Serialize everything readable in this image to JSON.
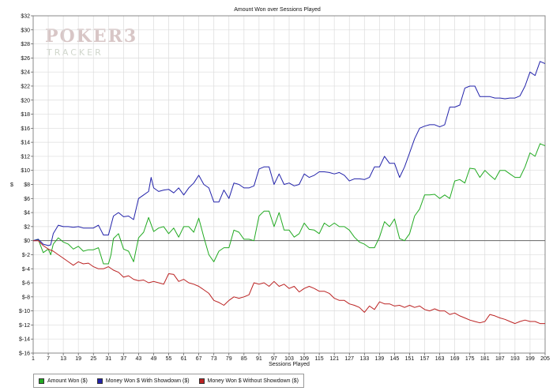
{
  "chart_data": {
    "type": "line",
    "title": "Amount Won over Sessions Played",
    "xlabel": "Sessions Played",
    "ylabel": "$",
    "xlim": [
      1,
      205
    ],
    "ylim": [
      -16,
      32
    ],
    "x_ticks": [
      1,
      7,
      13,
      19,
      25,
      31,
      37,
      43,
      49,
      55,
      61,
      67,
      73,
      79,
      85,
      91,
      97,
      103,
      109,
      115,
      121,
      127,
      133,
      139,
      145,
      151,
      157,
      163,
      169,
      175,
      181,
      187,
      193,
      199,
      205
    ],
    "y_ticks": [
      "$32",
      "$30",
      "$28",
      "$26",
      "$24",
      "$22",
      "$20",
      "$18",
      "$16",
      "$14",
      "$12",
      "$10",
      "$8",
      "$6",
      "$4",
      "$2",
      "$0",
      "$-2",
      "$-4",
      "$-6",
      "$-8",
      "$-10",
      "$-12",
      "$-14",
      "$-16"
    ],
    "y_tick_values": [
      32,
      30,
      28,
      26,
      24,
      22,
      20,
      18,
      16,
      14,
      12,
      10,
      8,
      6,
      4,
      2,
      0,
      -2,
      -4,
      -6,
      -8,
      -10,
      -12,
      -14,
      -16
    ],
    "grid": true,
    "legend_position": "bottom-left",
    "series": [
      {
        "name": "Amount Won ($)",
        "color": "#22aa22",
        "points": [
          [
            1,
            0
          ],
          [
            3,
            0.2
          ],
          [
            5,
            -1.7
          ],
          [
            7,
            -1.2
          ],
          [
            8,
            -2
          ],
          [
            9,
            -0.5
          ],
          [
            11,
            0.4
          ],
          [
            13,
            -0.2
          ],
          [
            15,
            -0.5
          ],
          [
            17,
            -1.2
          ],
          [
            19,
            -0.8
          ],
          [
            21,
            -1.5
          ],
          [
            23,
            -1.3
          ],
          [
            25,
            -1.3
          ],
          [
            27,
            -1
          ],
          [
            29,
            -3.3
          ],
          [
            31,
            -3.3
          ],
          [
            32,
            -2
          ],
          [
            33,
            0.3
          ],
          [
            35,
            1
          ],
          [
            37,
            -1.2
          ],
          [
            39,
            -1.5
          ],
          [
            41,
            -3
          ],
          [
            43,
            0.4
          ],
          [
            45,
            1.2
          ],
          [
            47,
            3.3
          ],
          [
            49,
            1.3
          ],
          [
            51,
            1.8
          ],
          [
            53,
            2
          ],
          [
            55,
            1
          ],
          [
            57,
            1.8
          ],
          [
            59,
            0.5
          ],
          [
            61,
            2
          ],
          [
            63,
            2
          ],
          [
            65,
            1.2
          ],
          [
            67,
            3.2
          ],
          [
            69,
            0.5
          ],
          [
            71,
            -2
          ],
          [
            73,
            -3
          ],
          [
            75,
            -1.5
          ],
          [
            77,
            -1
          ],
          [
            79,
            -1
          ],
          [
            81,
            1.5
          ],
          [
            83,
            1.2
          ],
          [
            85,
            0.2
          ],
          [
            87,
            0.2
          ],
          [
            89,
            0
          ],
          [
            91,
            3.5
          ],
          [
            93,
            4.2
          ],
          [
            95,
            4.2
          ],
          [
            97,
            2
          ],
          [
            99,
            4
          ],
          [
            101,
            1.5
          ],
          [
            103,
            1.5
          ],
          [
            105,
            0.5
          ],
          [
            107,
            1
          ],
          [
            109,
            2.5
          ],
          [
            111,
            1.6
          ],
          [
            113,
            1.5
          ],
          [
            115,
            1
          ],
          [
            117,
            2.5
          ],
          [
            119,
            2
          ],
          [
            121,
            2.5
          ],
          [
            123,
            2
          ],
          [
            125,
            2
          ],
          [
            127,
            1.5
          ],
          [
            129,
            0.5
          ],
          [
            131,
            -0.2
          ],
          [
            133,
            -0.5
          ],
          [
            135,
            -1
          ],
          [
            137,
            -1
          ],
          [
            139,
            0.5
          ],
          [
            141,
            2.7
          ],
          [
            143,
            2
          ],
          [
            145,
            3.1
          ],
          [
            147,
            0.3
          ],
          [
            149,
            0
          ],
          [
            151,
            1
          ],
          [
            153,
            3.5
          ],
          [
            155,
            4.5
          ],
          [
            157,
            6.5
          ],
          [
            159,
            6.5
          ],
          [
            161,
            6.6
          ],
          [
            163,
            6
          ],
          [
            165,
            6.5
          ],
          [
            167,
            6
          ],
          [
            169,
            8.5
          ],
          [
            171,
            8.7
          ],
          [
            173,
            8.2
          ],
          [
            175,
            10.3
          ],
          [
            177,
            10.2
          ],
          [
            179,
            9
          ],
          [
            181,
            10
          ],
          [
            183,
            9.3
          ],
          [
            185,
            8.7
          ],
          [
            187,
            10
          ],
          [
            189,
            10
          ],
          [
            191,
            9.5
          ],
          [
            193,
            9
          ],
          [
            195,
            9
          ],
          [
            197,
            10.5
          ],
          [
            199,
            12.5
          ],
          [
            201,
            12
          ],
          [
            203,
            13.8
          ],
          [
            205,
            13.5
          ]
        ]
      },
      {
        "name": "Money Won $ With Showdown ($)",
        "color": "#2222aa",
        "points": [
          [
            1,
            0
          ],
          [
            3,
            0.2
          ],
          [
            5,
            -0.5
          ],
          [
            7,
            -0.7
          ],
          [
            8,
            -0.6
          ],
          [
            9,
            1
          ],
          [
            11,
            2.2
          ],
          [
            13,
            2
          ],
          [
            15,
            2
          ],
          [
            17,
            1.9
          ],
          [
            19,
            2
          ],
          [
            21,
            1.8
          ],
          [
            23,
            1.8
          ],
          [
            25,
            1.8
          ],
          [
            27,
            2.2
          ],
          [
            29,
            0.8
          ],
          [
            31,
            0.8
          ],
          [
            33,
            3.5
          ],
          [
            35,
            4
          ],
          [
            37,
            3.4
          ],
          [
            39,
            3.5
          ],
          [
            41,
            3
          ],
          [
            43,
            6
          ],
          [
            45,
            6.5
          ],
          [
            47,
            7
          ],
          [
            48,
            9
          ],
          [
            49,
            7.5
          ],
          [
            51,
            7
          ],
          [
            53,
            7.2
          ],
          [
            55,
            7.3
          ],
          [
            57,
            6.8
          ],
          [
            59,
            7.5
          ],
          [
            61,
            6.5
          ],
          [
            63,
            7.5
          ],
          [
            65,
            8.2
          ],
          [
            67,
            9.3
          ],
          [
            69,
            8
          ],
          [
            71,
            7.5
          ],
          [
            73,
            5.5
          ],
          [
            75,
            5.5
          ],
          [
            77,
            7.2
          ],
          [
            79,
            6
          ],
          [
            81,
            8.2
          ],
          [
            83,
            8
          ],
          [
            85,
            7.5
          ],
          [
            87,
            7.5
          ],
          [
            89,
            7.8
          ],
          [
            91,
            10.2
          ],
          [
            93,
            10.5
          ],
          [
            95,
            10.5
          ],
          [
            97,
            8
          ],
          [
            99,
            9.5
          ],
          [
            101,
            8
          ],
          [
            103,
            8.2
          ],
          [
            105,
            7.8
          ],
          [
            107,
            8
          ],
          [
            109,
            9.5
          ],
          [
            111,
            9
          ],
          [
            113,
            9.3
          ],
          [
            115,
            9.8
          ],
          [
            117,
            9.8
          ],
          [
            119,
            9.7
          ],
          [
            121,
            9.5
          ],
          [
            123,
            9.7
          ],
          [
            125,
            9.3
          ],
          [
            127,
            8.5
          ],
          [
            129,
            8.8
          ],
          [
            131,
            8.8
          ],
          [
            133,
            8.7
          ],
          [
            135,
            9
          ],
          [
            137,
            10.5
          ],
          [
            139,
            10.5
          ],
          [
            141,
            12
          ],
          [
            143,
            11
          ],
          [
            145,
            11
          ],
          [
            147,
            9
          ],
          [
            149,
            10.5
          ],
          [
            151,
            12.5
          ],
          [
            153,
            14.5
          ],
          [
            155,
            16
          ],
          [
            157,
            16.3
          ],
          [
            159,
            16.5
          ],
          [
            161,
            16.5
          ],
          [
            163,
            16.2
          ],
          [
            165,
            16.5
          ],
          [
            167,
            19
          ],
          [
            169,
            19
          ],
          [
            171,
            19.3
          ],
          [
            173,
            21.7
          ],
          [
            175,
            22
          ],
          [
            177,
            22
          ],
          [
            179,
            20.5
          ],
          [
            181,
            20.5
          ],
          [
            183,
            20.5
          ],
          [
            185,
            20.3
          ],
          [
            187,
            20.3
          ],
          [
            189,
            20.2
          ],
          [
            191,
            20.3
          ],
          [
            193,
            20.3
          ],
          [
            195,
            20.6
          ],
          [
            197,
            22
          ],
          [
            199,
            24
          ],
          [
            201,
            23.5
          ],
          [
            203,
            25.5
          ],
          [
            205,
            25.2
          ]
        ]
      },
      {
        "name": "Money Won $ Without Showdown ($)",
        "color": "#bb2222",
        "points": [
          [
            1,
            0
          ],
          [
            3,
            0
          ],
          [
            5,
            -0.7
          ],
          [
            7,
            -1.2
          ],
          [
            9,
            -1.5
          ],
          [
            11,
            -2
          ],
          [
            13,
            -2.5
          ],
          [
            15,
            -3
          ],
          [
            17,
            -3.5
          ],
          [
            19,
            -3
          ],
          [
            21,
            -3.3
          ],
          [
            23,
            -3.2
          ],
          [
            25,
            -3.7
          ],
          [
            27,
            -4
          ],
          [
            29,
            -4
          ],
          [
            31,
            -3.7
          ],
          [
            33,
            -4.2
          ],
          [
            35,
            -4.5
          ],
          [
            37,
            -5.2
          ],
          [
            39,
            -5
          ],
          [
            41,
            -5.5
          ],
          [
            43,
            -5.7
          ],
          [
            45,
            -5.6
          ],
          [
            47,
            -6
          ],
          [
            49,
            -5.8
          ],
          [
            51,
            -6
          ],
          [
            53,
            -6.2
          ],
          [
            55,
            -4.7
          ],
          [
            57,
            -4.8
          ],
          [
            59,
            -5.8
          ],
          [
            61,
            -5.5
          ],
          [
            63,
            -6
          ],
          [
            65,
            -6.2
          ],
          [
            67,
            -6.5
          ],
          [
            69,
            -7
          ],
          [
            71,
            -7.5
          ],
          [
            73,
            -8.5
          ],
          [
            75,
            -8.8
          ],
          [
            77,
            -9.2
          ],
          [
            79,
            -8.5
          ],
          [
            81,
            -8
          ],
          [
            83,
            -8.2
          ],
          [
            85,
            -8
          ],
          [
            87,
            -7.7
          ],
          [
            89,
            -6
          ],
          [
            91,
            -6.2
          ],
          [
            93,
            -6
          ],
          [
            95,
            -6.5
          ],
          [
            97,
            -5.8
          ],
          [
            99,
            -6.5
          ],
          [
            101,
            -6.2
          ],
          [
            103,
            -6.8
          ],
          [
            105,
            -6.5
          ],
          [
            107,
            -7.3
          ],
          [
            109,
            -6.8
          ],
          [
            111,
            -6.5
          ],
          [
            113,
            -6.8
          ],
          [
            115,
            -7.2
          ],
          [
            117,
            -7.2
          ],
          [
            119,
            -7.5
          ],
          [
            121,
            -8.2
          ],
          [
            123,
            -8.5
          ],
          [
            125,
            -8.5
          ],
          [
            127,
            -9
          ],
          [
            129,
            -9.2
          ],
          [
            131,
            -9.5
          ],
          [
            133,
            -10.2
          ],
          [
            135,
            -9.3
          ],
          [
            137,
            -9.8
          ],
          [
            139,
            -8.7
          ],
          [
            141,
            -9
          ],
          [
            143,
            -9
          ],
          [
            145,
            -9.3
          ],
          [
            147,
            -9.2
          ],
          [
            149,
            -9.5
          ],
          [
            151,
            -9.2
          ],
          [
            153,
            -9.5
          ],
          [
            155,
            -9.3
          ],
          [
            157,
            -9.8
          ],
          [
            159,
            -10
          ],
          [
            161,
            -9.7
          ],
          [
            163,
            -10
          ],
          [
            165,
            -10
          ],
          [
            167,
            -10.5
          ],
          [
            169,
            -10.3
          ],
          [
            171,
            -10.7
          ],
          [
            173,
            -11
          ],
          [
            175,
            -11.3
          ],
          [
            177,
            -11.5
          ],
          [
            179,
            -11.7
          ],
          [
            181,
            -11.5
          ],
          [
            183,
            -10.5
          ],
          [
            185,
            -10.7
          ],
          [
            187,
            -11
          ],
          [
            189,
            -11.2
          ],
          [
            191,
            -11.5
          ],
          [
            193,
            -11.8
          ],
          [
            195,
            -11.5
          ],
          [
            197,
            -11.3
          ],
          [
            199,
            -11.5
          ],
          [
            201,
            -11.5
          ],
          [
            203,
            -11.8
          ],
          [
            205,
            -11.8
          ]
        ]
      }
    ]
  },
  "watermark": {
    "line1": "POKER3",
    "line2": "TRACKER"
  }
}
